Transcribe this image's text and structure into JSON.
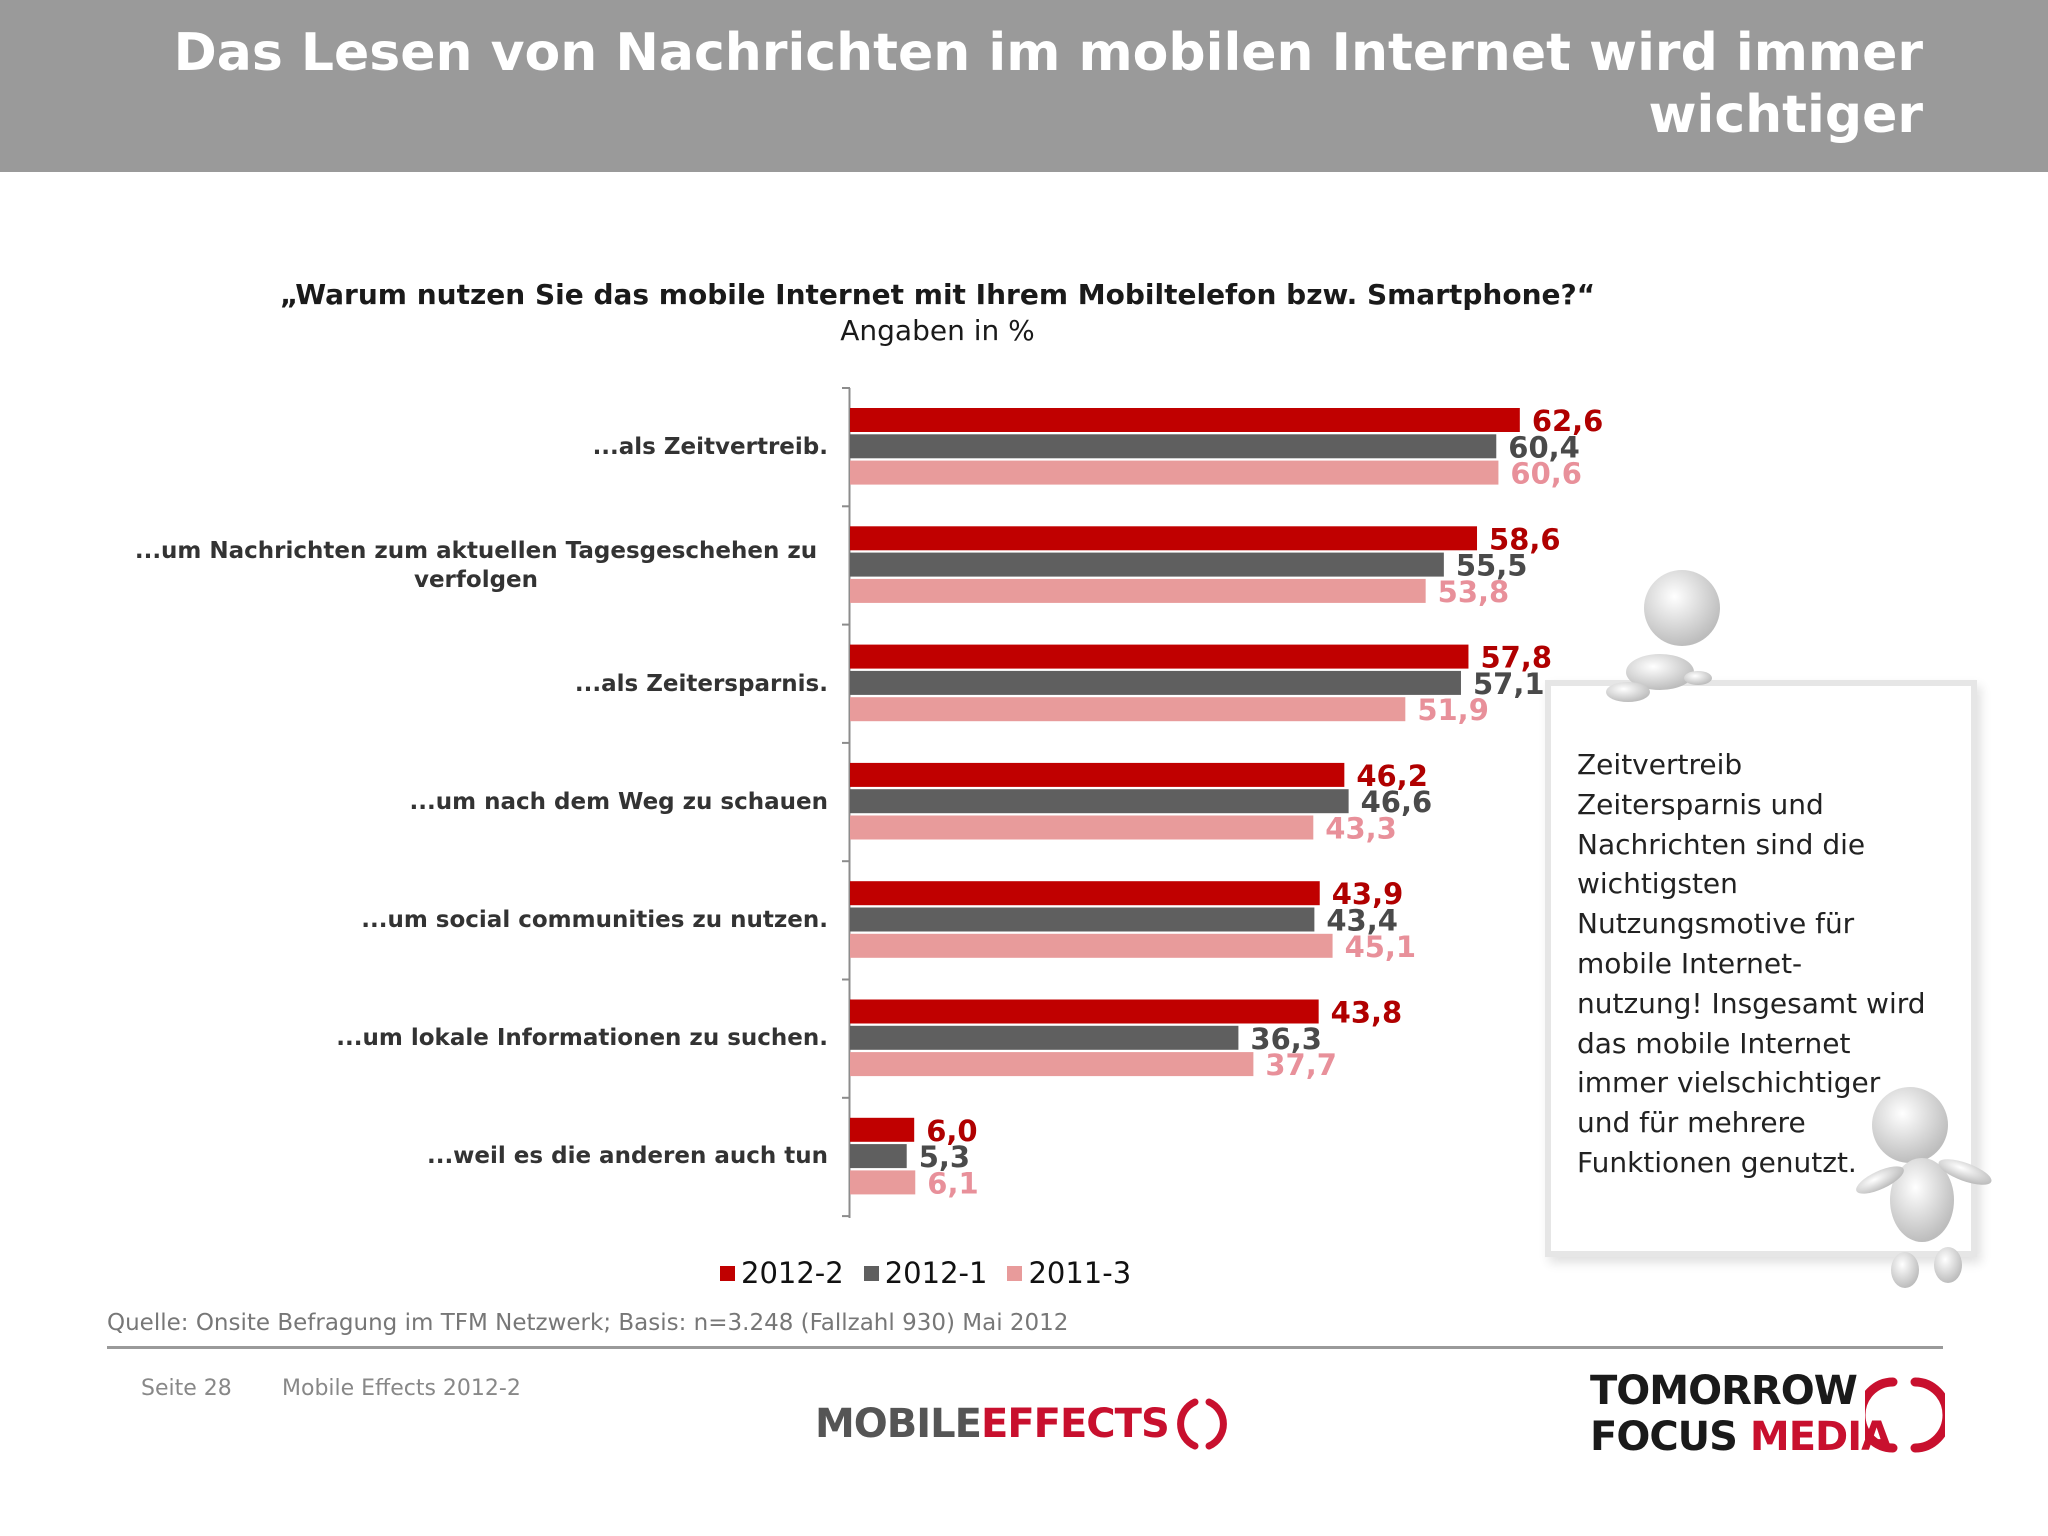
{
  "header": {
    "title": "Das Lesen von Nachrichten im mobilen Internet wird immer wichtiger"
  },
  "chart_data": {
    "type": "bar",
    "orientation": "horizontal",
    "title": "„Warum nutzen Sie das mobile Internet mit Ihrem Mobiltelefon bzw. Smartphone?“",
    "subtitle": "Angaben in %",
    "categories": [
      "...als Zeitvertreib.",
      "...um Nachrichten zum aktuellen Tagesgeschehen zu verfolgen",
      "...als Zeitersparnis.",
      "...um nach dem Weg zu schauen",
      "...um social communities zu nutzen.",
      "...um lokale Informationen zu suchen.",
      "...weil es die anderen auch tun"
    ],
    "series": [
      {
        "name": "2012-2",
        "color": "#c00000",
        "label_color": "#b00000",
        "values": [
          62.6,
          58.6,
          57.8,
          46.2,
          43.9,
          43.8,
          6.0
        ],
        "labels": [
          "62,6",
          "58,6",
          "57,8",
          "46,2",
          "43,9",
          "43,8",
          "6,0"
        ]
      },
      {
        "name": "2012-1",
        "color": "#5f5f5f",
        "label_color": "#4a4a4a",
        "values": [
          60.4,
          55.5,
          57.1,
          46.6,
          43.4,
          36.3,
          5.3
        ],
        "labels": [
          "60,4",
          "55,5",
          "57,1",
          "46,6",
          "43,4",
          "36,3",
          "5,3"
        ]
      },
      {
        "name": "2011-3",
        "color": "#e89b9b",
        "label_color": "#e8909a",
        "values": [
          60.6,
          53.8,
          51.9,
          43.3,
          45.1,
          37.7,
          6.1
        ],
        "labels": [
          "60,6",
          "53,8",
          "51,9",
          "43,3",
          "45,1",
          "37,7",
          "6,1"
        ]
      }
    ],
    "legend_position": "bottom",
    "grid": false
  },
  "note": {
    "lines": [
      "Zeitvertreib",
      "Zeitersparnis und",
      "Nachrichten sind die",
      "wichtigsten",
      "Nutzungsmotive für",
      "mobile Internet-",
      "nutzung! Insgesamt wird",
      "das mobile Internet",
      "immer vielschichtiger",
      "und für mehrere",
      "Funktionen genutzt."
    ]
  },
  "source": "Quelle: Onsite Befragung im TFM Netzwerk; Basis: n=3.248 (Fallzahl 930) Mai 2012",
  "footer": {
    "page": "Seite 28",
    "document": "Mobile Effects 2012-2"
  },
  "brands": {
    "mobile_effects": {
      "part1": "MOBILE",
      "part2": "EFFECTS"
    },
    "tfm": {
      "line1": "TOMORROW",
      "line2a": "FOCUS",
      "line2b": "MEDIA"
    }
  }
}
